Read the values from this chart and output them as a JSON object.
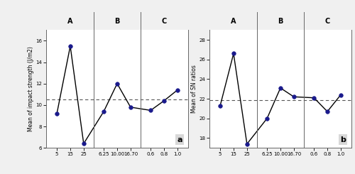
{
  "plot_a": {
    "groups": [
      "A",
      "B",
      "C"
    ],
    "group_xticks": [
      [
        "5",
        "15",
        "25"
      ],
      [
        "6.25",
        "10.00",
        "16.70"
      ],
      [
        "0.6",
        "0.8",
        "1.0"
      ]
    ],
    "y_values": [
      9.2,
      15.5,
      6.4,
      9.4,
      12.0,
      9.8,
      9.5,
      10.4,
      11.4
    ],
    "dashed_line": 10.5,
    "ylabel": "Mean of impact strength (J/m2)",
    "ylim": [
      6,
      17
    ],
    "yticks": [
      6,
      8,
      10,
      12,
      14,
      16
    ],
    "label": "a"
  },
  "plot_b": {
    "groups": [
      "A",
      "B",
      "C"
    ],
    "group_xticks": [
      [
        "5",
        "15",
        "25"
      ],
      [
        "6.25",
        "10.00",
        "16.70"
      ],
      [
        "0.6",
        "0.8",
        "1.0"
      ]
    ],
    "y_values": [
      21.3,
      26.6,
      17.4,
      20.0,
      23.1,
      22.2,
      22.1,
      20.7,
      22.4
    ],
    "dashed_line": 21.85,
    "ylabel": "Mean of SN ratios",
    "ylim": [
      17,
      29
    ],
    "yticks": [
      18,
      20,
      22,
      24,
      26,
      28
    ],
    "label": "b"
  },
  "line_color": "#000000",
  "marker_facecolor": "#1a1a8c",
  "marker_edgecolor": "#1a1a8c",
  "marker": "o",
  "marker_size": 4,
  "dashed_color": "#555555",
  "divider_color": "#666666",
  "border_color": "#666666",
  "header_line_color": "#666666",
  "background_color": "#f0f0f0",
  "plot_bg_color": "#ffffff",
  "label_bg_color": "#d8d8d8",
  "header_bg_color": "#e8e8e8",
  "fig_width": 5.0,
  "fig_height": 2.45,
  "dpi": 100,
  "group_label_fontsize": 7,
  "tick_fontsize": 5,
  "ylabel_fontsize": 5.5,
  "label_fontsize": 8
}
